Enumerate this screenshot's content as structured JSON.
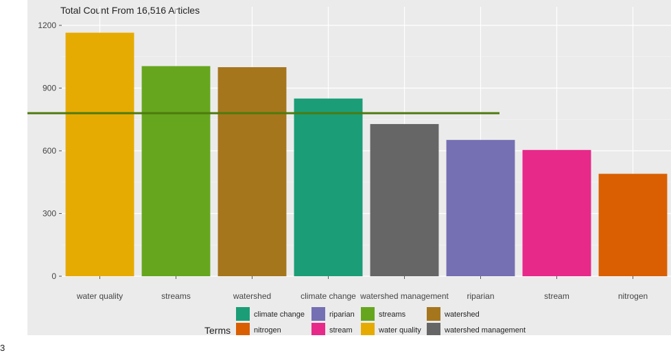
{
  "chart_data": {
    "type": "bar",
    "title": "Total Count From 16,516 Articles",
    "xlabel": "",
    "ylabel": "",
    "categories": [
      "water quality",
      "streams",
      "watershed",
      "climate change",
      "watershed management",
      "riparian",
      "stream",
      "nitrogen"
    ],
    "values": [
      1165,
      1005,
      1000,
      850,
      728,
      652,
      604,
      490
    ],
    "colors": [
      "#e6ab02",
      "#66a61e",
      "#a6761d",
      "#1b9e77",
      "#666666",
      "#7570b3",
      "#e7298a",
      "#d95f02"
    ],
    "ylim": [
      0,
      1200
    ],
    "yticks": [
      0,
      300,
      600,
      900,
      1200
    ],
    "grid": true,
    "reference_line": {
      "value": 780,
      "color": "#4d7a0e"
    },
    "legend": {
      "title": "Terms",
      "position": "bottom",
      "entries": [
        {
          "label": "climate change",
          "color": "#1b9e77"
        },
        {
          "label": "nitrogen",
          "color": "#d95f02"
        },
        {
          "label": "riparian",
          "color": "#7570b3"
        },
        {
          "label": "stream",
          "color": "#e7298a"
        },
        {
          "label": "streams",
          "color": "#66a61e"
        },
        {
          "label": "water quality",
          "color": "#e6ab02"
        },
        {
          "label": "watershed",
          "color": "#a6761d"
        },
        {
          "label": "watershed management",
          "color": "#666666"
        }
      ]
    }
  },
  "stray_text": "3"
}
